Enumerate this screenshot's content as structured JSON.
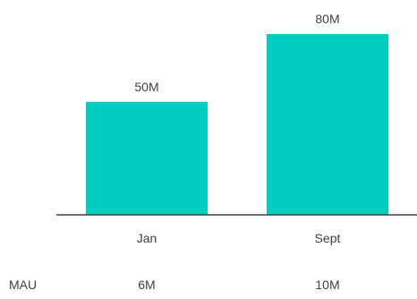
{
  "chart_data": {
    "type": "bar",
    "categories": [
      "Jan",
      "Sept"
    ],
    "values": [
      50,
      80
    ],
    "value_labels": [
      "50M",
      "80M"
    ],
    "ylim": [
      0,
      80
    ],
    "grid": false,
    "colors": {
      "bar": "#00CDBE",
      "axis": "#404040",
      "text": "#404040"
    },
    "footer_row": {
      "label": "MAU",
      "values": [
        "6M",
        "10M"
      ]
    }
  }
}
